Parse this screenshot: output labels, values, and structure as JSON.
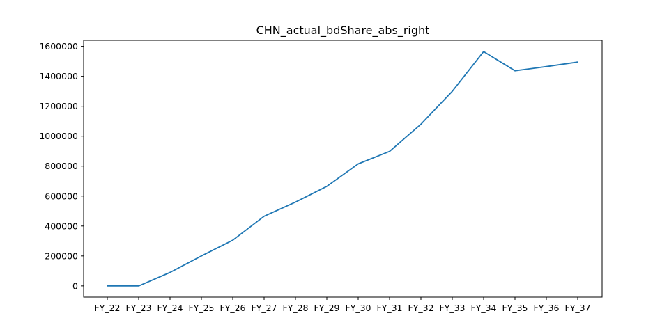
{
  "chart_data": {
    "type": "line",
    "title": "CHN_actual_bdShare_abs_right",
    "xlabel": "",
    "ylabel": "",
    "categories": [
      "FY_22",
      "FY_23",
      "FY_24",
      "FY_25",
      "FY_26",
      "FY_27",
      "FY_28",
      "FY_29",
      "FY_30",
      "FY_31",
      "FY_32",
      "FY_33",
      "FY_34",
      "FY_35",
      "FY_36",
      "FY_37"
    ],
    "y_ticks": [
      0,
      200000,
      400000,
      600000,
      800000,
      1000000,
      1200000,
      1400000,
      1600000
    ],
    "ylim": [
      -75000,
      1640000
    ],
    "grid": false,
    "series": [
      {
        "color": "#1f77b4",
        "values": [
          0,
          0,
          90000,
          200000,
          305000,
          465000,
          560000,
          665000,
          815000,
          898000,
          1080000,
          1300000,
          1565000,
          1437000,
          1465000,
          1495000
        ]
      }
    ]
  }
}
